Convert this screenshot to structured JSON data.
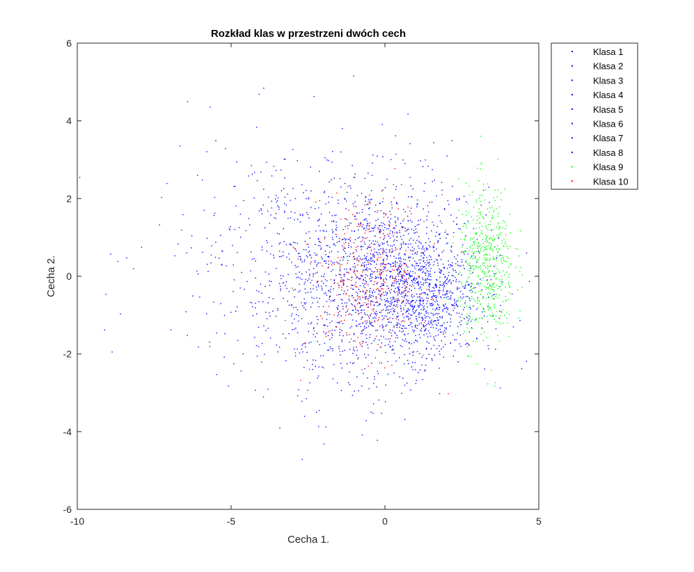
{
  "chart_data": {
    "type": "scatter",
    "title": "Rozkład klas w przestrzeni dwóch cech",
    "xlabel": "Cecha 1.",
    "ylabel": "Cecha 2.",
    "xlim": [
      -10,
      5
    ],
    "ylim": [
      -6,
      6
    ],
    "xticks": [
      -10,
      -5,
      0,
      5
    ],
    "xtick_labels": [
      "-10",
      "-5",
      "0",
      "5"
    ],
    "yticks": [
      -6,
      -4,
      -2,
      0,
      2,
      4,
      6
    ],
    "ytick_labels": [
      "-6",
      "-4",
      "-2",
      "0",
      "2",
      "4",
      "6"
    ],
    "grid": false,
    "legend_position": "outside-top-right",
    "marker": "point",
    "series": [
      {
        "name": "Klasa 1",
        "color": "#0000ff",
        "center": [
          -0.3,
          0.2
        ],
        "spread": [
          1.8,
          1.2
        ],
        "n": 320
      },
      {
        "name": "Klasa 2",
        "color": "#0000ff",
        "center": [
          0.5,
          -0.2
        ],
        "spread": [
          1.3,
          1.0
        ],
        "n": 320
      },
      {
        "name": "Klasa 3",
        "color": "#0000ff",
        "center": [
          -1.5,
          0.4
        ],
        "spread": [
          2.2,
          1.5
        ],
        "n": 300
      },
      {
        "name": "Klasa 4",
        "color": "#0000ff",
        "center": [
          1.0,
          -0.5
        ],
        "spread": [
          1.0,
          0.8
        ],
        "n": 300
      },
      {
        "name": "Klasa 5",
        "color": "#0000ff",
        "center": [
          -3.0,
          0.5
        ],
        "spread": [
          2.3,
          1.6
        ],
        "n": 280
      },
      {
        "name": "Klasa 6",
        "color": "#0000ff",
        "center": [
          0.2,
          0.0
        ],
        "spread": [
          1.5,
          1.1
        ],
        "n": 320
      },
      {
        "name": "Klasa 7",
        "color": "#0000ff",
        "center": [
          -1.0,
          -0.8
        ],
        "spread": [
          1.6,
          1.3
        ],
        "n": 300
      },
      {
        "name": "Klasa 8",
        "color": "#0000ff",
        "center": [
          1.2,
          -0.6
        ],
        "spread": [
          0.9,
          0.7
        ],
        "n": 300
      },
      {
        "name": "Klasa 9",
        "color": "#00ff00",
        "center": [
          3.3,
          0.3
        ],
        "spread": [
          0.45,
          1.0
        ],
        "n": 520
      },
      {
        "name": "Klasa 10",
        "color": "#ff0000",
        "center": [
          -0.5,
          0.0
        ],
        "spread": [
          1.0,
          1.0
        ],
        "n": 380
      }
    ]
  }
}
